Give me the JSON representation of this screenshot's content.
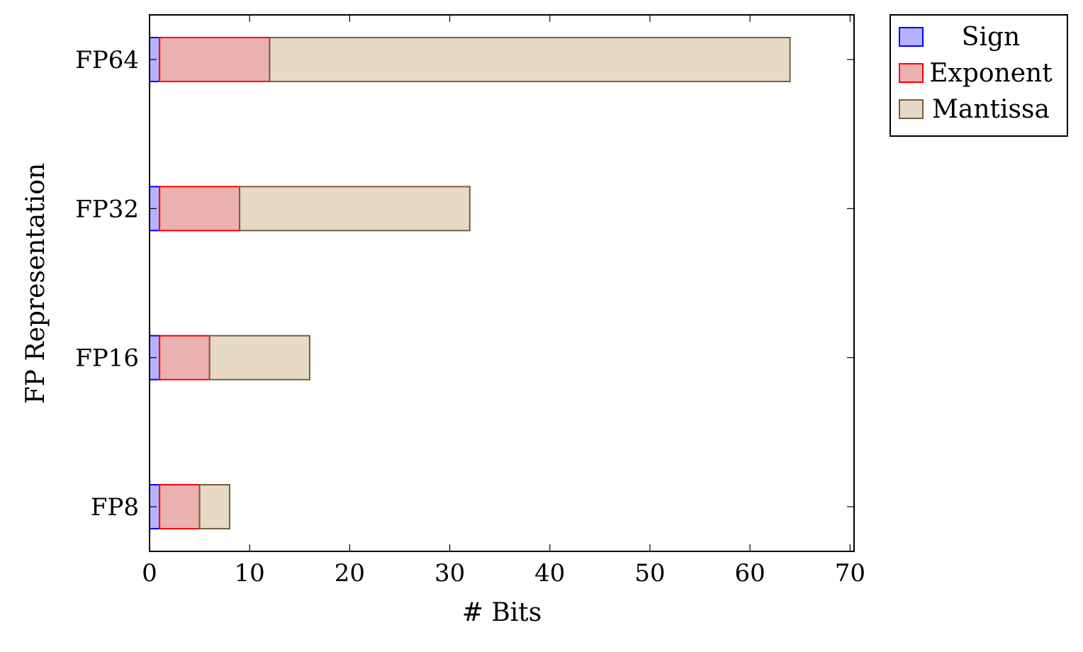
{
  "chart_data": {
    "type": "bar",
    "orientation": "horizontal",
    "stacked": true,
    "categories": [
      "FP64",
      "FP32",
      "FP16",
      "FP8"
    ],
    "series": [
      {
        "name": "Sign",
        "values": [
          1,
          1,
          1,
          1
        ],
        "fill": "#b3b3ff",
        "stroke": "#0000ff"
      },
      {
        "name": "Exponent",
        "values": [
          11,
          8,
          5,
          4
        ],
        "fill": "#ebb0b0",
        "stroke": "#ff0000"
      },
      {
        "name": "Mantissa",
        "values": [
          52,
          23,
          10,
          3
        ],
        "fill": "#e6d9c6",
        "stroke": "#7a5c3c"
      }
    ],
    "xlabel": "# Bits",
    "ylabel": "FP Representation",
    "xlim": [
      0,
      70.4
    ],
    "xticks": [
      0,
      10,
      20,
      30,
      40,
      50,
      60,
      70
    ],
    "grid": false,
    "legend_position": "outside-top-right"
  }
}
